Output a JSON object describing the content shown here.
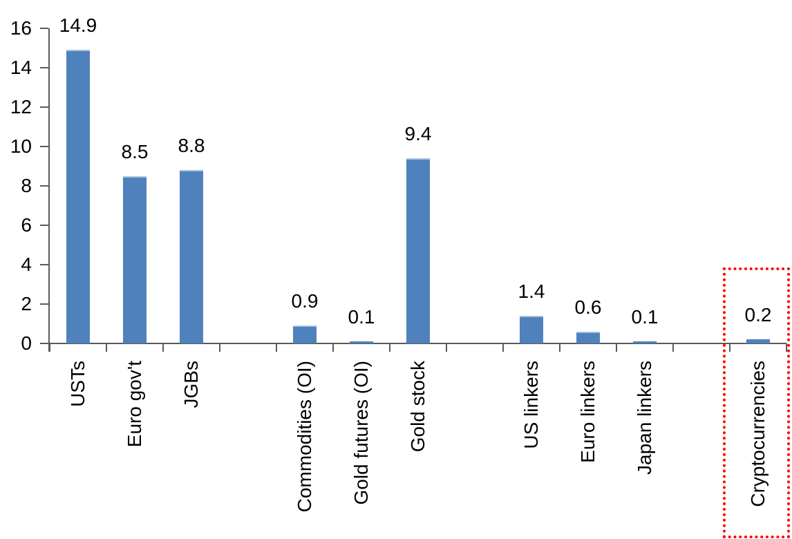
{
  "colors": {
    "bar": "#4F81BD",
    "bar_top_edge": "#A8C2DE",
    "axis": "#595959",
    "text": "#000000",
    "highlight_box": "#FF0000",
    "background": "#FFFFFF"
  },
  "chart_data": {
    "type": "bar",
    "title": "",
    "xlabel": "",
    "ylabel": "",
    "ylim": [
      0,
      16
    ],
    "ytick_step": 2,
    "ytick_labels": [
      "0",
      "2",
      "4",
      "6",
      "8",
      "10",
      "12",
      "14",
      "16"
    ],
    "grid": false,
    "legend": null,
    "categories": [
      "USTs",
      "Euro gov't",
      "JGBs",
      "Commodities (OI)",
      "Gold futures (OI)",
      "Gold stock",
      "US linkers",
      "Euro linkers",
      "Japan linkers",
      "Cryptocurrencies"
    ],
    "values": [
      14.9,
      8.5,
      8.8,
      0.9,
      0.1,
      9.4,
      1.4,
      0.6,
      0.1,
      0.2
    ],
    "value_labels": [
      "14.9",
      "8.5",
      "8.8",
      "0.9",
      "0.1",
      "9.4",
      "1.4",
      "0.6",
      "0.1",
      "0.2"
    ],
    "groups": [
      [
        0,
        1,
        2
      ],
      [
        3,
        4,
        5
      ],
      [
        6,
        7,
        8
      ],
      [
        9
      ]
    ],
    "highlighted_category": "Cryptocurrencies",
    "highlight_style": "red dotted rectangle around Cryptocurrencies column",
    "bar_color": "#4F81BD",
    "category_label_rotation_deg": -90,
    "data_label_position": "outside-end"
  }
}
